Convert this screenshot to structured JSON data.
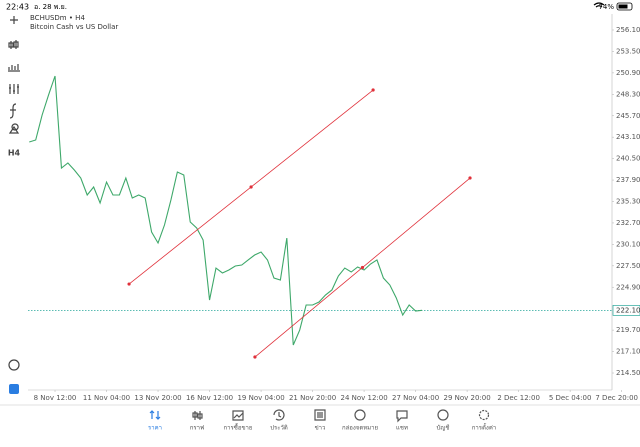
{
  "status_bar": {
    "time": "22:43",
    "date": "อ. 28 พ.ย.",
    "battery": "74%"
  },
  "toolbar": {
    "timeframe": "H4"
  },
  "chart_data": {
    "type": "line",
    "title": "BCHUSDm • H4",
    "subtitle": "Bitcoin Cash vs US Dollar",
    "color": "#3ea86a",
    "x": [
      -8,
      -6,
      -4,
      -2,
      0,
      2,
      4,
      6,
      8,
      10,
      12,
      14,
      16,
      18,
      20,
      22,
      24,
      26,
      28,
      30,
      32,
      34,
      36,
      38,
      40,
      42,
      44,
      46,
      48,
      50,
      52,
      54,
      56,
      58,
      60,
      62,
      64,
      66,
      68,
      70,
      72,
      74,
      76,
      78,
      80,
      82,
      84,
      86,
      88,
      90,
      92,
      94,
      96,
      98,
      100,
      102,
      104,
      106,
      108,
      110,
      112,
      114
    ],
    "values": [
      242.52,
      242.76,
      245.79,
      248.22,
      250.52,
      239.36,
      239.97,
      239.12,
      238.15,
      236.09,
      237.06,
      235.12,
      237.66,
      236.09,
      236.09,
      238.15,
      235.72,
      236.09,
      235.72,
      231.6,
      230.27,
      232.45,
      235.48,
      238.88,
      238.51,
      232.81,
      232.09,
      230.63,
      223.35,
      227.23,
      226.63,
      226.99,
      227.48,
      227.6,
      228.21,
      228.81,
      229.17,
      228.21,
      226.02,
      225.78,
      230.87,
      217.9,
      219.71,
      222.75,
      222.75,
      223.11,
      223.96,
      224.57,
      226.26,
      227.23,
      226.75,
      227.36,
      226.99,
      227.72,
      228.21,
      226.02,
      225.17,
      223.6,
      221.53,
      222.75,
      222.02,
      222.1
    ],
    "xlim": [
      -8.39,
      173
    ],
    "ylim": [
      212.44,
      258.04
    ],
    "xticks": [
      {
        "value": 0,
        "label": "8 Nov 12:00"
      },
      {
        "value": 16,
        "label": "11 Nov 04:00"
      },
      {
        "value": 32,
        "label": "13 Nov 20:00"
      },
      {
        "value": 48,
        "label": "16 Nov 12:00"
      },
      {
        "value": 64,
        "label": "19 Nov 04:00"
      },
      {
        "value": 80,
        "label": "21 Nov 20:00"
      },
      {
        "value": 96,
        "label": "24 Nov 12:00"
      },
      {
        "value": 112,
        "label": "27 Nov 04:00"
      },
      {
        "value": 128,
        "label": "29 Nov 20:00"
      },
      {
        "value": 144,
        "label": "2 Dec 12:00"
      },
      {
        "value": 160,
        "label": "5 Dec 04:00"
      },
      {
        "value": 176,
        "label": "7 Dec 20:00"
      }
    ],
    "yticks": [
      {
        "value": 256.1,
        "label": "256.10"
      },
      {
        "value": 253.5,
        "label": "253.50"
      },
      {
        "value": 250.9,
        "label": "250.90"
      },
      {
        "value": 248.3,
        "label": "248.30"
      },
      {
        "value": 245.7,
        "label": "245.70"
      },
      {
        "value": 243.1,
        "label": "243.10"
      },
      {
        "value": 240.5,
        "label": "240.50"
      },
      {
        "value": 237.9,
        "label": "237.90"
      },
      {
        "value": 235.3,
        "label": "235.30"
      },
      {
        "value": 232.7,
        "label": "232.70"
      },
      {
        "value": 230.1,
        "label": "230.10"
      },
      {
        "value": 227.5,
        "label": "227.50"
      },
      {
        "value": 224.9,
        "label": "224.90"
      },
      {
        "value": 219.7,
        "label": "219.70"
      },
      {
        "value": 217.1,
        "label": "217.10"
      },
      {
        "value": 214.5,
        "label": "214.50"
      }
    ],
    "current_price": {
      "value": 222.1,
      "label": "222.10",
      "color": "#26a69a"
    },
    "trendline_color": "#e0303a",
    "trendlines": [
      {
        "x": [
          23,
          98.8
        ],
        "y": [
          225.29,
          248.82
        ]
      },
      {
        "x": [
          62.1,
          128.9
        ],
        "y": [
          216.44,
          238.15
        ]
      }
    ]
  },
  "tabs": [
    {
      "label": "ราคา",
      "active": true
    },
    {
      "label": "กราฟ",
      "active": false
    },
    {
      "label": "การซื้อขาย",
      "active": false
    },
    {
      "label": "ประวัติ",
      "active": false
    },
    {
      "label": "ข่าว",
      "active": false
    },
    {
      "label": "กล่องจดหมาย",
      "active": false
    },
    {
      "label": "แชท",
      "active": false
    },
    {
      "label": "บัญชี",
      "active": false
    },
    {
      "label": "การตั้งค่า",
      "active": false
    }
  ]
}
